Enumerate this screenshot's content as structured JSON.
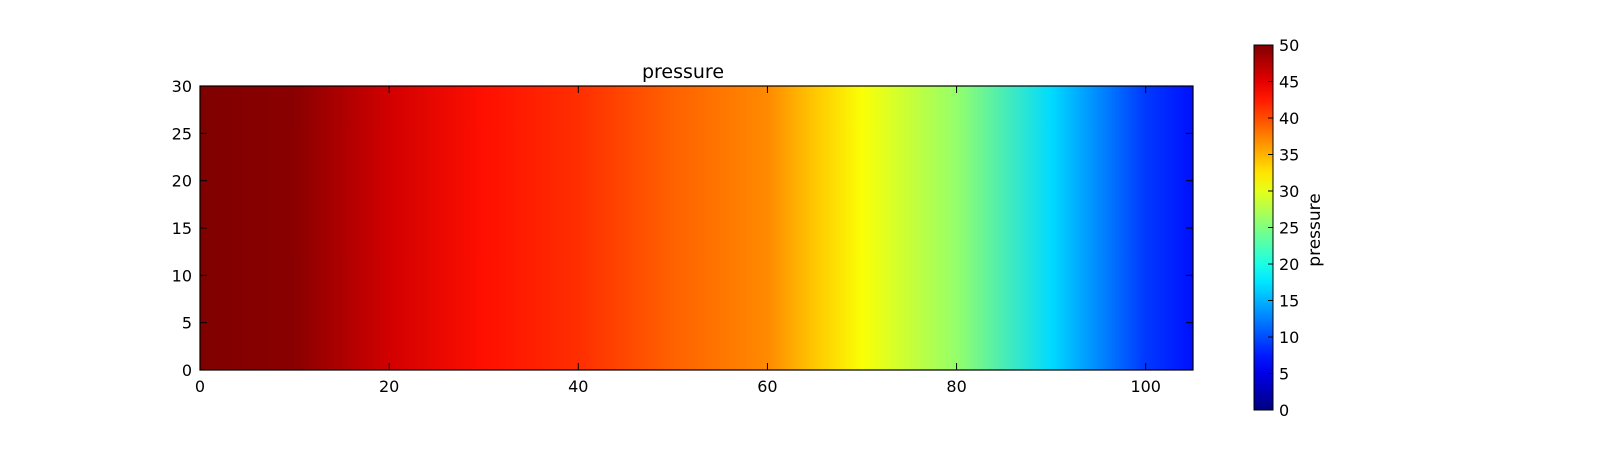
{
  "chart_data": {
    "type": "heatmap",
    "title": "pressure",
    "xlabel": "",
    "ylabel": "",
    "xlim": [
      0,
      105
    ],
    "ylim": [
      0,
      30
    ],
    "x_ticks": [
      "0",
      "20",
      "40",
      "60",
      "80",
      "100"
    ],
    "y_ticks": [
      "0",
      "5",
      "10",
      "15",
      "20",
      "25",
      "30"
    ],
    "grid": false,
    "colormap": "jet",
    "colorbar": {
      "label": "pressure",
      "range": [
        0,
        50
      ],
      "ticks": [
        "0",
        "5",
        "10",
        "15",
        "20",
        "25",
        "30",
        "35",
        "40",
        "45",
        "50"
      ],
      "position": "right"
    },
    "field_profile": {
      "x": [
        0,
        10,
        20,
        30,
        40,
        50,
        60,
        65,
        70,
        80,
        90,
        100,
        105
      ],
      "pressure": [
        50,
        49.5,
        46,
        43,
        41.5,
        39,
        37,
        34,
        31,
        26,
        17,
        9,
        7
      ]
    }
  }
}
